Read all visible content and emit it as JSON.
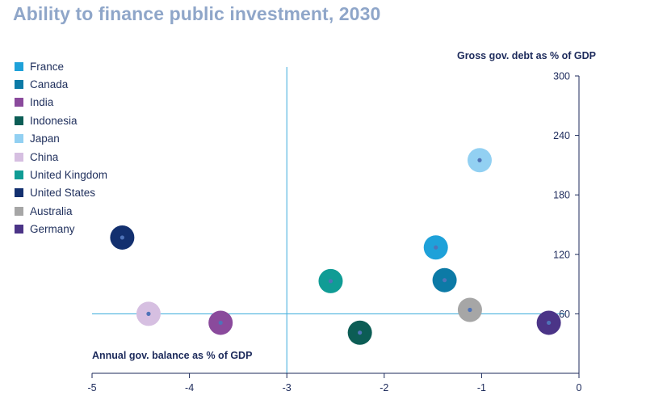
{
  "title": "Ability to finance public investment, 2030",
  "chart_data": {
    "type": "scatter",
    "title": "Ability to finance public investment, 2030",
    "xlabel": "Annual gov. balance as % of GDP",
    "ylabel": "Gross gov. debt as % of GDP",
    "xlim": [
      -5,
      0
    ],
    "ylim": [
      0,
      300
    ],
    "x_ticks": [
      -5,
      -4,
      -3,
      -2,
      -1,
      0
    ],
    "y_ticks": [
      60,
      120,
      180,
      240,
      300
    ],
    "reference_lines": {
      "x": -3,
      "y": 60
    },
    "legend_position": "top-left",
    "points": [
      {
        "name": "France",
        "x": -1.47,
        "y": 127,
        "color": "#1ea1d9"
      },
      {
        "name": "Canada",
        "x": -1.38,
        "y": 94,
        "color": "#0c7aa6"
      },
      {
        "name": "India",
        "x": -3.68,
        "y": 51,
        "color": "#8a4a9c"
      },
      {
        "name": "Indonesia",
        "x": -2.25,
        "y": 41,
        "color": "#0c5d55"
      },
      {
        "name": "Japan",
        "x": -1.02,
        "y": 215,
        "color": "#92d0f2"
      },
      {
        "name": "China",
        "x": -4.42,
        "y": 60,
        "color": "#d6bfe1"
      },
      {
        "name": "United Kingdom",
        "x": -2.55,
        "y": 93,
        "color": "#109c95"
      },
      {
        "name": "United States",
        "x": -4.69,
        "y": 137,
        "color": "#13306f"
      },
      {
        "name": "Australia",
        "x": -1.12,
        "y": 64,
        "color": "#a6a6a6"
      },
      {
        "name": "Germany",
        "x": -0.31,
        "y": 51,
        "color": "#4b3487"
      }
    ]
  }
}
